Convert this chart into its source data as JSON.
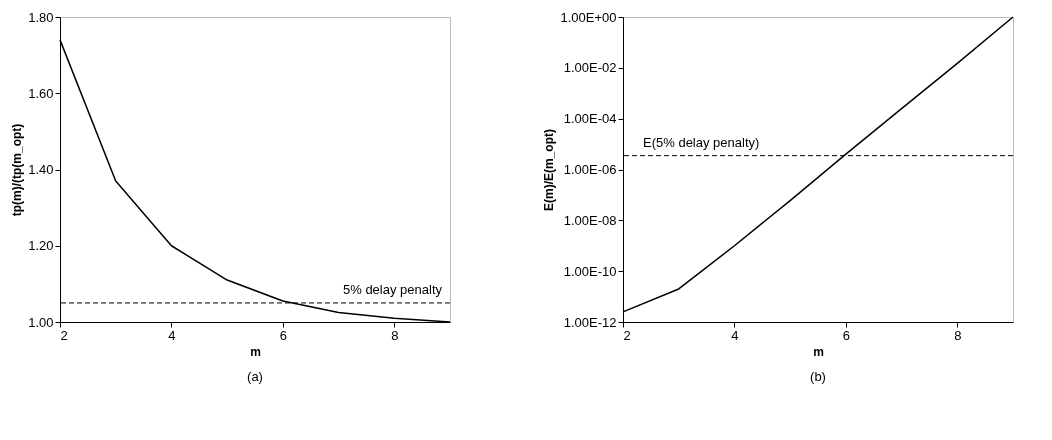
{
  "chart_data": [
    {
      "type": "line",
      "title": "(a)",
      "xlabel": "m",
      "ylabel": "tp(m)/(tp(m_opt)",
      "x": [
        2,
        3,
        4,
        5,
        6,
        7,
        8,
        9
      ],
      "series": [
        {
          "color": "#000000",
          "values": [
            1.74,
            1.37,
            1.2,
            1.11,
            1.055,
            1.025,
            1.01,
            1.0
          ]
        }
      ],
      "xlim": [
        2,
        9
      ],
      "xticks": [
        2,
        4,
        6,
        8
      ],
      "ylim": [
        1.0,
        1.8
      ],
      "yticks": [
        {
          "value": 1.0,
          "label": "1.00"
        },
        {
          "value": 1.2,
          "label": "1.20"
        },
        {
          "value": 1.4,
          "label": "1.40"
        },
        {
          "value": 1.6,
          "label": "1.60"
        },
        {
          "value": 1.8,
          "label": "1.80"
        }
      ],
      "ref_lines": [
        {
          "axis": "y",
          "value": 1.05,
          "label": "5% delay penalty",
          "line_style": "dashed"
        }
      ],
      "grid": false,
      "marker": "none",
      "line_style": "solid"
    },
    {
      "type": "line",
      "title": "(b)",
      "xlabel": "m",
      "ylabel": "E(m)/E(m_opt)",
      "log": "y",
      "x": [
        2,
        3,
        4,
        5,
        6,
        7,
        8,
        9
      ],
      "series": [
        {
          "color": "#000000",
          "values": [
            2.5e-12,
            2e-11,
            1e-09,
            6e-08,
            4e-06,
            0.00025,
            0.015,
            1.0
          ]
        }
      ],
      "xlim": [
        2,
        9
      ],
      "xticks": [
        2,
        4,
        6,
        8
      ],
      "ylim": [
        1e-12,
        1.0
      ],
      "yticks": [
        {
          "value": 1e-12,
          "label": "1.00E-12"
        },
        {
          "value": 1e-10,
          "label": "1.00E-10"
        },
        {
          "value": 1e-08,
          "label": "1.00E-08"
        },
        {
          "value": 1e-06,
          "label": "1.00E-06"
        },
        {
          "value": 0.0001,
          "label": "1.00E-04"
        },
        {
          "value": 0.01,
          "label": "1.00E-02"
        },
        {
          "value": 1.0,
          "label": "1.00E+00"
        }
      ],
      "ref_lines": [
        {
          "axis": "y",
          "value": 3.5e-06,
          "label": "E(5% delay penalty)",
          "line_style": "dashed"
        }
      ],
      "grid": false,
      "marker": "none",
      "line_style": "solid"
    }
  ]
}
